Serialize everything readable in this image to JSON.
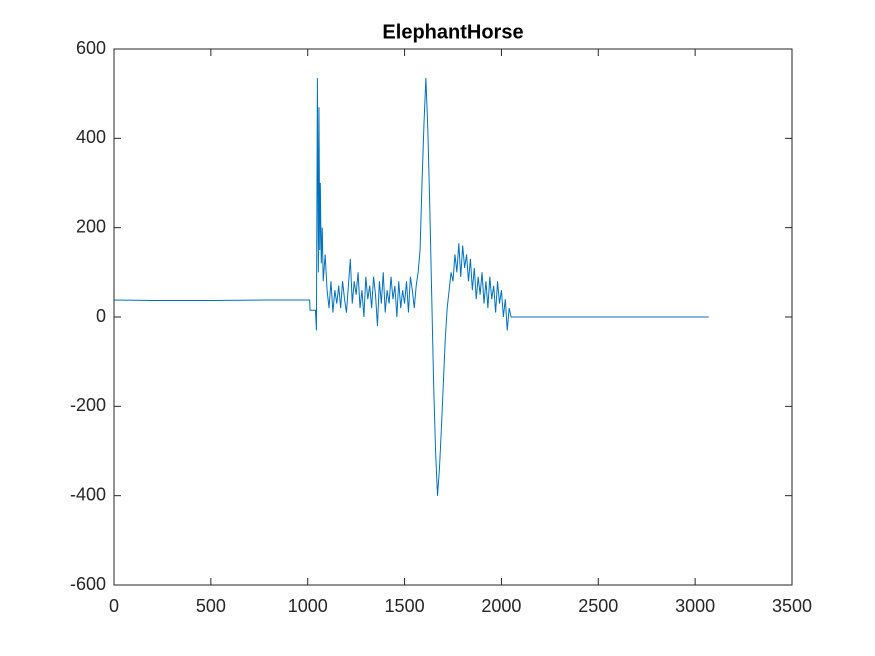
{
  "chart_data": {
    "type": "line",
    "title": "ElephantHorse",
    "x": [
      0,
      200,
      500,
      800,
      1010,
      1012,
      1040,
      1045,
      1050,
      1055,
      1058,
      1062,
      1065,
      1070,
      1075,
      1080,
      1090,
      1100,
      1110,
      1120,
      1130,
      1140,
      1150,
      1160,
      1170,
      1180,
      1190,
      1200,
      1210,
      1220,
      1230,
      1240,
      1250,
      1260,
      1270,
      1280,
      1290,
      1300,
      1310,
      1320,
      1330,
      1340,
      1350,
      1360,
      1370,
      1380,
      1390,
      1400,
      1410,
      1420,
      1430,
      1440,
      1450,
      1460,
      1470,
      1480,
      1490,
      1500,
      1510,
      1520,
      1530,
      1540,
      1550,
      1560,
      1570,
      1580,
      1590,
      1600,
      1610,
      1620,
      1630,
      1640,
      1650,
      1660,
      1670,
      1680,
      1690,
      1700,
      1710,
      1720,
      1730,
      1740,
      1750,
      1760,
      1770,
      1780,
      1790,
      1800,
      1810,
      1820,
      1830,
      1840,
      1850,
      1860,
      1870,
      1880,
      1890,
      1900,
      1910,
      1920,
      1930,
      1940,
      1950,
      1960,
      1970,
      1980,
      1990,
      2000,
      2010,
      2020,
      2030,
      2040,
      2050,
      3070
    ],
    "series": [
      {
        "color": "#0072bd",
        "values": [
          38,
          37,
          37,
          38,
          38,
          15,
          15,
          -30,
          535,
          100,
          470,
          150,
          300,
          120,
          200,
          80,
          140,
          60,
          20,
          80,
          10,
          60,
          30,
          70,
          20,
          80,
          40,
          10,
          70,
          130,
          30,
          80,
          50,
          100,
          20,
          60,
          0,
          90,
          40,
          70,
          20,
          90,
          50,
          -20,
          80,
          30,
          100,
          10,
          60,
          30,
          90,
          40,
          70,
          0,
          80,
          20,
          60,
          30,
          80,
          10,
          90,
          60,
          20,
          70,
          100,
          150,
          300,
          430,
          535,
          420,
          250,
          50,
          -150,
          -300,
          -400,
          -340,
          -250,
          -150,
          -50,
          20,
          60,
          100,
          80,
          140,
          100,
          165,
          90,
          160,
          110,
          140,
          80,
          130,
          60,
          110,
          40,
          90,
          50,
          100,
          30,
          80,
          20,
          90,
          40,
          70,
          10,
          80,
          30,
          60,
          0,
          40,
          -30,
          20,
          0,
          0
        ]
      }
    ],
    "xlim": [
      0,
      3500
    ],
    "xticks": [
      0,
      500,
      1000,
      1500,
      2000,
      2500,
      3000,
      3500
    ],
    "ylim": [
      -600,
      600
    ],
    "yticks": [
      -600,
      -400,
      -200,
      0,
      200,
      400,
      600
    ],
    "grid": false
  }
}
